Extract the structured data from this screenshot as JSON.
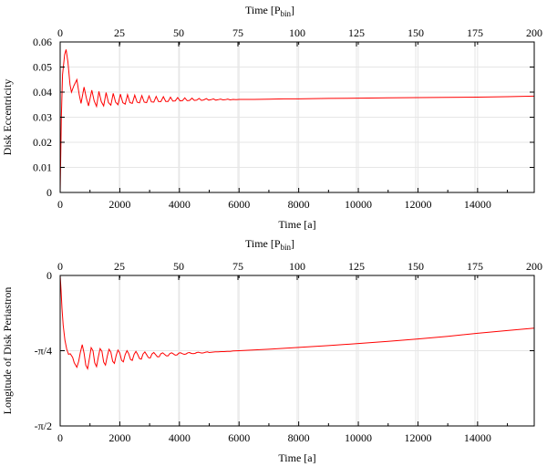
{
  "chart_data": [
    {
      "type": "line",
      "title": "",
      "xlabel": "Time [a]",
      "x2label": "Time [P",
      "x2label_sub": "bin",
      "x2label_close": "]",
      "ylabel": "Disk Eccentricity",
      "xlim": [
        0,
        15900
      ],
      "ylim": [
        0,
        0.06
      ],
      "xticks": [
        0,
        2000,
        4000,
        6000,
        8000,
        10000,
        12000,
        14000
      ],
      "xtick_labels": [
        "0",
        "2000",
        "4000",
        "6000",
        "8000",
        "10000",
        "12000",
        "14000"
      ],
      "x2lim": [
        0,
        200
      ],
      "x2ticks": [
        0,
        25,
        50,
        75,
        100,
        125,
        150,
        175,
        200
      ],
      "x2tick_labels": [
        "0",
        "25",
        "50",
        "75",
        "100",
        "125",
        "150",
        "175",
        "200"
      ],
      "yticks": [
        0,
        0.01,
        0.02,
        0.03,
        0.04,
        0.05,
        0.06
      ],
      "ytick_labels": [
        "0",
        "0.01",
        "0.02",
        "0.03",
        "0.04",
        "0.05",
        "0.06"
      ],
      "grid": true,
      "series": [
        {
          "name": "eccentricity",
          "color": "#ff0000",
          "points": [
            [
              0,
              0.0
            ],
            [
              40,
              0.03
            ],
            [
              80,
              0.047
            ],
            [
              150,
              0.055
            ],
            [
              200,
              0.057
            ],
            [
              260,
              0.052
            ],
            [
              330,
              0.043
            ],
            [
              380,
              0.04
            ],
            [
              460,
              0.0425
            ],
            [
              560,
              0.045
            ],
            [
              640,
              0.039
            ],
            [
              700,
              0.0355
            ],
            [
              800,
              0.042
            ],
            [
              880,
              0.0375
            ],
            [
              950,
              0.0345
            ],
            [
              1060,
              0.0408
            ],
            [
              1140,
              0.0365
            ],
            [
              1220,
              0.0343
            ],
            [
              1300,
              0.0403
            ],
            [
              1380,
              0.0362
            ],
            [
              1460,
              0.0345
            ],
            [
              1540,
              0.0398
            ],
            [
              1620,
              0.0358
            ],
            [
              1700,
              0.0348
            ],
            [
              1780,
              0.0395
            ],
            [
              1860,
              0.036
            ],
            [
              1940,
              0.035
            ],
            [
              2020,
              0.0392
            ],
            [
              2100,
              0.0358
            ],
            [
              2180,
              0.0352
            ],
            [
              2260,
              0.039
            ],
            [
              2340,
              0.0358
            ],
            [
              2420,
              0.0355
            ],
            [
              2500,
              0.0388
            ],
            [
              2580,
              0.036
            ],
            [
              2660,
              0.0357
            ],
            [
              2740,
              0.0386
            ],
            [
              2820,
              0.036
            ],
            [
              2900,
              0.0358
            ],
            [
              2980,
              0.0385
            ],
            [
              3060,
              0.0361
            ],
            [
              3140,
              0.036
            ],
            [
              3220,
              0.0383
            ],
            [
              3300,
              0.0362
            ],
            [
              3380,
              0.0362
            ],
            [
              3460,
              0.0382
            ],
            [
              3540,
              0.0363
            ],
            [
              3620,
              0.0363
            ],
            [
              3700,
              0.038
            ],
            [
              3780,
              0.0364
            ],
            [
              3860,
              0.0365
            ],
            [
              3940,
              0.0378
            ],
            [
              4020,
              0.0365
            ],
            [
              4100,
              0.0366
            ],
            [
              4180,
              0.0377
            ],
            [
              4260,
              0.0366
            ],
            [
              4340,
              0.0367
            ],
            [
              4420,
              0.0376
            ],
            [
              4500,
              0.0367
            ],
            [
              4580,
              0.0368
            ],
            [
              4660,
              0.0375
            ],
            [
              4740,
              0.0367
            ],
            [
              4820,
              0.0369
            ],
            [
              4900,
              0.0374
            ],
            [
              4980,
              0.0368
            ],
            [
              5060,
              0.037
            ],
            [
              5140,
              0.0373
            ],
            [
              5220,
              0.0368
            ],
            [
              5300,
              0.037
            ],
            [
              5380,
              0.0372
            ],
            [
              5460,
              0.0369
            ],
            [
              5540,
              0.037
            ],
            [
              5620,
              0.0372
            ],
            [
              5700,
              0.0369
            ],
            [
              5800,
              0.0371
            ],
            [
              5900,
              0.037
            ],
            [
              6000,
              0.0371
            ],
            [
              6500,
              0.0371
            ],
            [
              7000,
              0.0372
            ],
            [
              7500,
              0.0373
            ],
            [
              8000,
              0.0373
            ],
            [
              9000,
              0.0375
            ],
            [
              10000,
              0.0376
            ],
            [
              11000,
              0.0377
            ],
            [
              12000,
              0.0378
            ],
            [
              13000,
              0.0379
            ],
            [
              14000,
              0.038
            ],
            [
              15000,
              0.0382
            ],
            [
              15900,
              0.0384
            ]
          ]
        }
      ]
    },
    {
      "type": "line",
      "title": "",
      "xlabel": "Time [a]",
      "x2label": "Time [P",
      "x2label_sub": "bin",
      "x2label_close": "]",
      "ylabel": "Longitude of Disk Periastron",
      "xlim": [
        0,
        15900
      ],
      "ylim": [
        -0.5,
        0
      ],
      "xticks": [
        0,
        2000,
        4000,
        6000,
        8000,
        10000,
        12000,
        14000
      ],
      "xtick_labels": [
        "0",
        "2000",
        "4000",
        "6000",
        "8000",
        "10000",
        "12000",
        "14000"
      ],
      "x2lim": [
        0,
        200
      ],
      "x2ticks": [
        0,
        25,
        50,
        75,
        100,
        125,
        150,
        175,
        200
      ],
      "x2tick_labels": [
        "0",
        "25",
        "50",
        "75",
        "100",
        "125",
        "150",
        "175",
        "200"
      ],
      "yticks": [
        0,
        -0.25,
        -0.5
      ],
      "ytick_labels": [
        "0",
        "-π/4",
        "-π/2"
      ],
      "y_unit": "fraction of π",
      "grid": true,
      "series": [
        {
          "name": "periastron",
          "color": "#ff0000",
          "points": [
            [
              0,
              0.0
            ],
            [
              30,
              -0.05
            ],
            [
              60,
              -0.11
            ],
            [
              100,
              -0.165
            ],
            [
              160,
              -0.215
            ],
            [
              220,
              -0.245
            ],
            [
              280,
              -0.262
            ],
            [
              340,
              -0.26
            ],
            [
              420,
              -0.272
            ],
            [
              470,
              -0.29
            ],
            [
              560,
              -0.305
            ],
            [
              620,
              -0.285
            ],
            [
              680,
              -0.255
            ],
            [
              740,
              -0.23
            ],
            [
              800,
              -0.258
            ],
            [
              860,
              -0.298
            ],
            [
              920,
              -0.31
            ],
            [
              980,
              -0.275
            ],
            [
              1040,
              -0.24
            ],
            [
              1100,
              -0.25
            ],
            [
              1160,
              -0.29
            ],
            [
              1220,
              -0.303
            ],
            [
              1280,
              -0.27
            ],
            [
              1340,
              -0.243
            ],
            [
              1400,
              -0.252
            ],
            [
              1460,
              -0.288
            ],
            [
              1520,
              -0.298
            ],
            [
              1580,
              -0.268
            ],
            [
              1640,
              -0.245
            ],
            [
              1700,
              -0.255
            ],
            [
              1760,
              -0.285
            ],
            [
              1820,
              -0.292
            ],
            [
              1880,
              -0.265
            ],
            [
              1940,
              -0.248
            ],
            [
              2000,
              -0.258
            ],
            [
              2060,
              -0.282
            ],
            [
              2120,
              -0.287
            ],
            [
              2180,
              -0.263
            ],
            [
              2240,
              -0.25
            ],
            [
              2300,
              -0.26
            ],
            [
              2360,
              -0.279
            ],
            [
              2420,
              -0.282
            ],
            [
              2480,
              -0.262
            ],
            [
              2540,
              -0.252
            ],
            [
              2600,
              -0.262
            ],
            [
              2660,
              -0.276
            ],
            [
              2720,
              -0.278
            ],
            [
              2780,
              -0.261
            ],
            [
              2840,
              -0.254
            ],
            [
              2900,
              -0.263
            ],
            [
              2960,
              -0.273
            ],
            [
              3020,
              -0.274
            ],
            [
              3080,
              -0.261
            ],
            [
              3140,
              -0.256
            ],
            [
              3200,
              -0.263
            ],
            [
              3260,
              -0.27
            ],
            [
              3320,
              -0.27
            ],
            [
              3380,
              -0.26
            ],
            [
              3440,
              -0.257
            ],
            [
              3500,
              -0.262
            ],
            [
              3560,
              -0.267
            ],
            [
              3620,
              -0.267
            ],
            [
              3680,
              -0.259
            ],
            [
              3740,
              -0.257
            ],
            [
              3800,
              -0.261
            ],
            [
              3860,
              -0.265
            ],
            [
              3920,
              -0.264
            ],
            [
              3980,
              -0.258
            ],
            [
              4040,
              -0.257
            ],
            [
              4100,
              -0.26
            ],
            [
              4160,
              -0.262
            ],
            [
              4220,
              -0.261
            ],
            [
              4280,
              -0.257
            ],
            [
              4340,
              -0.256
            ],
            [
              4400,
              -0.259
            ],
            [
              4460,
              -0.26
            ],
            [
              4520,
              -0.259
            ],
            [
              4580,
              -0.256
            ],
            [
              4640,
              -0.255
            ],
            [
              4700,
              -0.257
            ],
            [
              4760,
              -0.258
            ],
            [
              4820,
              -0.257
            ],
            [
              4880,
              -0.255
            ],
            [
              4940,
              -0.254
            ],
            [
              5000,
              -0.256
            ],
            [
              5100,
              -0.255
            ],
            [
              5200,
              -0.254
            ],
            [
              5300,
              -0.254
            ],
            [
              5400,
              -0.253
            ],
            [
              5500,
              -0.253
            ],
            [
              5600,
              -0.252
            ],
            [
              5700,
              -0.252
            ],
            [
              5800,
              -0.251
            ],
            [
              6000,
              -0.25
            ],
            [
              7000,
              -0.245
            ],
            [
              8000,
              -0.239
            ],
            [
              9000,
              -0.233
            ],
            [
              10000,
              -0.226
            ],
            [
              11000,
              -0.219
            ],
            [
              12000,
              -0.211
            ],
            [
              13000,
              -0.202
            ],
            [
              14000,
              -0.192
            ],
            [
              15000,
              -0.183
            ],
            [
              15900,
              -0.175
            ]
          ]
        }
      ]
    }
  ]
}
